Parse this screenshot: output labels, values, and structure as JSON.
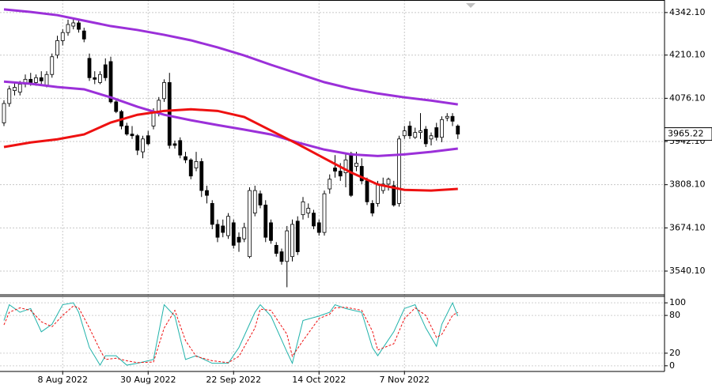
{
  "chart_data": [
    {
      "type": "candlestick",
      "categories": [
        null,
        null,
        null,
        null,
        null,
        null,
        null,
        null,
        null,
        null,
        null,
        "8 Aug 2022",
        null,
        null,
        null,
        null,
        null,
        null,
        null,
        null,
        null,
        null,
        null,
        null,
        null,
        null,
        null,
        "30 Aug 2022",
        null,
        null,
        null,
        null,
        null,
        null,
        null,
        null,
        null,
        null,
        null,
        null,
        null,
        null,
        null,
        "22 Sep 2022",
        null,
        null,
        null,
        null,
        null,
        null,
        null,
        null,
        null,
        null,
        null,
        null,
        null,
        null,
        null,
        "14 Oct 2022",
        null,
        null,
        null,
        null,
        null,
        null,
        null,
        null,
        null,
        null,
        null,
        null,
        null,
        null,
        null,
        "7 Nov 2022",
        null,
        null,
        null,
        null,
        null,
        null,
        null,
        null,
        null,
        null
      ],
      "candles": [
        [
          4000,
          4070,
          3990,
          4060
        ],
        [
          4060,
          4115,
          4050,
          4105
        ],
        [
          4100,
          4125,
          4085,
          4110
        ],
        [
          4095,
          4130,
          4085,
          4120
        ],
        [
          4120,
          4150,
          4110,
          4135
        ],
        [
          4135,
          4155,
          4115,
          4125
        ],
        [
          4125,
          4150,
          4115,
          4140
        ],
        [
          4140,
          4160,
          4120,
          4130
        ],
        [
          4115,
          4160,
          4110,
          4150
        ],
        [
          4150,
          4215,
          4140,
          4205
        ],
        [
          4210,
          4270,
          4200,
          4255
        ],
        [
          4255,
          4290,
          4240,
          4280
        ],
        [
          4280,
          4320,
          4270,
          4305
        ],
        [
          4300,
          4325,
          4290,
          4310
        ],
        [
          4310,
          4320,
          4280,
          4290
        ],
        [
          4285,
          4295,
          4250,
          4260
        ],
        [
          4200,
          4215,
          4130,
          4140
        ],
        [
          4140,
          4160,
          4120,
          4135
        ],
        [
          4125,
          4160,
          4120,
          4150
        ],
        [
          4180,
          4200,
          4130,
          4140
        ],
        [
          4190,
          4205,
          4060,
          4065
        ],
        [
          4065,
          4075,
          4030,
          4035
        ],
        [
          4035,
          4040,
          3980,
          3990
        ],
        [
          3990,
          4000,
          3960,
          3965
        ],
        [
          3965,
          3990,
          3950,
          3960
        ],
        [
          3960,
          3965,
          3900,
          3915
        ],
        [
          3910,
          3960,
          3890,
          3950
        ],
        [
          3960,
          3975,
          3930,
          3935
        ],
        [
          3990,
          4045,
          3980,
          4035
        ],
        [
          4030,
          4080,
          4020,
          4070
        ],
        [
          4075,
          4135,
          4065,
          4125
        ],
        [
          4125,
          4155,
          3920,
          3930
        ],
        [
          3935,
          3945,
          3920,
          3930
        ],
        [
          3945,
          3955,
          3890,
          3900
        ],
        [
          3895,
          3910,
          3875,
          3885
        ],
        [
          3885,
          3890,
          3825,
          3835
        ],
        [
          3860,
          3910,
          3850,
          3880
        ],
        [
          3880,
          3890,
          3770,
          3790
        ],
        [
          3790,
          3805,
          3750,
          3775
        ],
        [
          3750,
          3760,
          3670,
          3685
        ],
        [
          3685,
          3700,
          3630,
          3645
        ],
        [
          3680,
          3700,
          3645,
          3660
        ],
        [
          3650,
          3720,
          3640,
          3710
        ],
        [
          3690,
          3700,
          3610,
          3620
        ],
        [
          3645,
          3660,
          3600,
          3630
        ],
        [
          3640,
          3690,
          3630,
          3675
        ],
        [
          3585,
          3800,
          3580,
          3790
        ],
        [
          3720,
          3805,
          3710,
          3790
        ],
        [
          3780,
          3790,
          3735,
          3745
        ],
        [
          3745,
          3760,
          3630,
          3645
        ],
        [
          3690,
          3700,
          3625,
          3635
        ],
        [
          3620,
          3630,
          3585,
          3595
        ],
        [
          3600,
          3610,
          3560,
          3570
        ],
        [
          3570,
          3680,
          3490,
          3665
        ],
        [
          3585,
          3700,
          3570,
          3685
        ],
        [
          3695,
          3710,
          3590,
          3600
        ],
        [
          3715,
          3770,
          3700,
          3755
        ],
        [
          3720,
          3750,
          3705,
          3735
        ],
        [
          3720,
          3730,
          3670,
          3680
        ],
        [
          3690,
          3700,
          3650,
          3660
        ],
        [
          3660,
          3790,
          3650,
          3780
        ],
        [
          3795,
          3840,
          3780,
          3825
        ],
        [
          3860,
          3900,
          3830,
          3850
        ],
        [
          3850,
          3875,
          3820,
          3835
        ],
        [
          3845,
          3905,
          3800,
          3885
        ],
        [
          3905,
          3910,
          3770,
          3775
        ],
        [
          3865,
          3910,
          3850,
          3875
        ],
        [
          3865,
          3890,
          3810,
          3820
        ],
        [
          3820,
          3830,
          3745,
          3755
        ],
        [
          3750,
          3760,
          3710,
          3720
        ],
        [
          3750,
          3820,
          3740,
          3810
        ],
        [
          3790,
          3830,
          3780,
          3810
        ],
        [
          3810,
          3830,
          3790,
          3825
        ],
        [
          3805,
          3820,
          3740,
          3745
        ],
        [
          3750,
          3960,
          3740,
          3950
        ],
        [
          3960,
          3990,
          3950,
          3975
        ],
        [
          3990,
          4005,
          3950,
          3960
        ],
        [
          3955,
          3985,
          3950,
          3970
        ],
        [
          3970,
          4030,
          3950,
          3975
        ],
        [
          3980,
          3990,
          3925,
          3935
        ],
        [
          3950,
          3970,
          3930,
          3960
        ],
        [
          3985,
          4000,
          3945,
          3955
        ],
        [
          3955,
          4020,
          3940,
          4010
        ],
        [
          4015,
          4030,
          4005,
          4020
        ],
        [
          4020,
          4030,
          3990,
          4005
        ],
        [
          3990,
          3995,
          3950,
          3965
        ]
      ],
      "overlays": [
        {
          "color": "#9b30d9",
          "x": [
            0,
            5,
            10,
            15,
            20,
            25,
            30,
            35,
            40,
            45,
            50,
            55,
            60,
            65,
            70,
            75,
            80,
            85
          ],
          "values": [
            4352,
            4344,
            4334,
            4317,
            4300,
            4288,
            4273,
            4256,
            4234,
            4209,
            4180,
            4153,
            4126,
            4106,
            4091,
            4079,
            4069,
            4057
          ]
        },
        {
          "color": "#9b30d9",
          "x": [
            0,
            5,
            10,
            15,
            20,
            25,
            30,
            35,
            40,
            45,
            50,
            55,
            60,
            65,
            70,
            75,
            80,
            85
          ],
          "values": [
            4128,
            4121,
            4111,
            4104,
            4079,
            4050,
            4025,
            4008,
            3993,
            3979,
            3964,
            3939,
            3917,
            3902,
            3897,
            3902,
            3910,
            3920
          ]
        },
        {
          "color": "#ee1111",
          "x": [
            0,
            5,
            10,
            15,
            20,
            25,
            30,
            35,
            40,
            45,
            50,
            55,
            60,
            65,
            70,
            75,
            80,
            85
          ],
          "values": [
            3925,
            3939,
            3949,
            3964,
            4001,
            4025,
            4037,
            4042,
            4037,
            4018,
            3976,
            3934,
            3890,
            3846,
            3809,
            3792,
            3790,
            3795
          ]
        }
      ],
      "current_price": 3965.22,
      "ylim": [
        3469,
        4381
      ],
      "yticks": [
        {
          "value": 4342.1,
          "label": "4342.10"
        },
        {
          "value": 4210.1,
          "label": "4210.10"
        },
        {
          "value": 4076.1,
          "label": "4076.10"
        },
        {
          "value": 3942.1,
          "label": "3942.10"
        },
        {
          "value": 3808.1,
          "label": "3808.10"
        },
        {
          "value": 3674.1,
          "label": "3674.10"
        },
        {
          "value": 3540.1,
          "label": "3540.10"
        }
      ],
      "grid": true
    },
    {
      "type": "line",
      "series": [
        {
          "color": "#20b2aa",
          "dash": false,
          "x": [
            0,
            1,
            3,
            5,
            7,
            9,
            11,
            13,
            14,
            16,
            18,
            19,
            21,
            23,
            25,
            28,
            30,
            32,
            34,
            36,
            39,
            42,
            44,
            47,
            48,
            50,
            53,
            54,
            56,
            59,
            61,
            62,
            64,
            67,
            69,
            70,
            73,
            75,
            77,
            79,
            81,
            82,
            84,
            85
          ],
          "values": [
            72,
            97,
            85,
            91,
            54,
            66,
            97,
            100,
            85,
            29,
            1,
            16,
            16,
            1,
            4,
            10,
            97,
            79,
            10,
            16,
            4,
            4,
            29,
            85,
            97,
            79,
            22,
            4,
            72,
            79,
            85,
            97,
            91,
            85,
            29,
            16,
            54,
            91,
            97,
            60,
            31,
            66,
            100,
            79
          ]
        },
        {
          "color": "#ee1111",
          "dash": true,
          "x": [
            0,
            1,
            3,
            5,
            7,
            9,
            11,
            13,
            14,
            16,
            18,
            19,
            21,
            23,
            25,
            28,
            30,
            32,
            34,
            36,
            39,
            42,
            44,
            47,
            48,
            50,
            53,
            54,
            56,
            59,
            61,
            62,
            64,
            67,
            69,
            70,
            73,
            75,
            77,
            79,
            81,
            82,
            84,
            85
          ],
          "values": [
            65,
            85,
            92,
            88,
            70,
            62,
            80,
            95,
            92,
            60,
            25,
            10,
            12,
            8,
            5,
            6,
            60,
            88,
            40,
            15,
            8,
            5,
            15,
            60,
            90,
            88,
            50,
            15,
            40,
            75,
            82,
            92,
            93,
            88,
            55,
            25,
            35,
            75,
            92,
            80,
            45,
            50,
            80,
            85
          ]
        }
      ],
      "ylim": [
        -9,
        109
      ],
      "yticks": [
        100,
        80,
        20,
        0
      ]
    }
  ]
}
